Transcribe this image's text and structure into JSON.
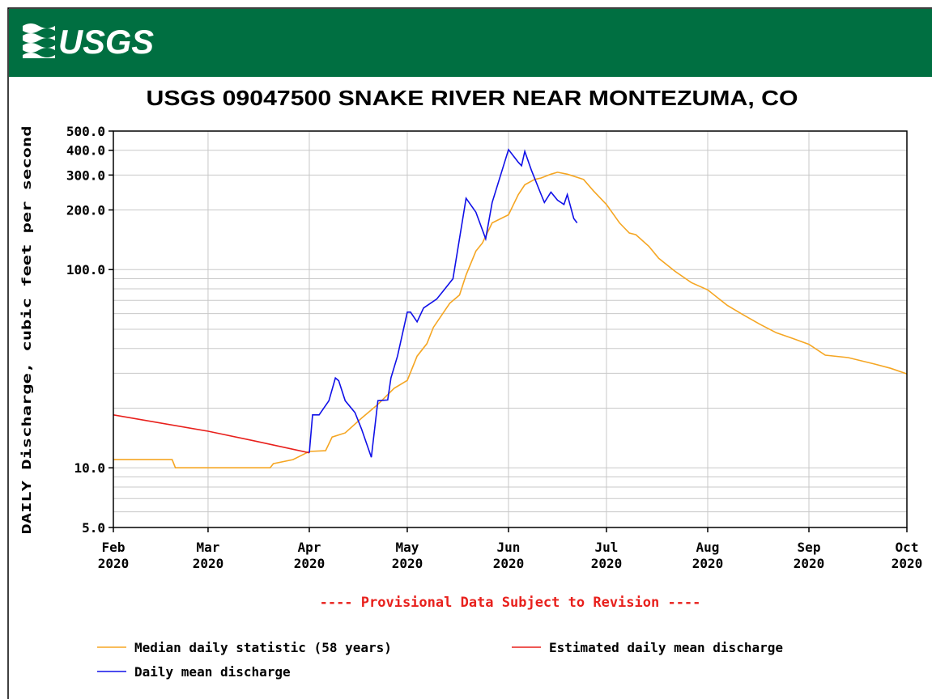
{
  "header": {
    "logo": "USGS"
  },
  "chart_data": {
    "type": "line",
    "title": "USGS 09047500 SNAKE RIVER NEAR MONTEZUMA, CO",
    "ylabel": "DAILY Discharge, cubic feet per second",
    "note": "---- Provisional Data Subject to Revision ----",
    "log_y": true,
    "grid": true,
    "ylim": [
      5,
      500
    ],
    "yticks": [
      {
        "value": 5,
        "label": "5.0"
      },
      {
        "value": 10,
        "label": "10.0"
      },
      {
        "value": 100,
        "label": "100.0"
      },
      {
        "value": 200,
        "label": "200.0"
      },
      {
        "value": 300,
        "label": "300.0"
      },
      {
        "value": 400,
        "label": "400.0"
      },
      {
        "value": 500,
        "label": "500.0"
      }
    ],
    "yticks_minor": [
      6,
      7,
      8,
      9,
      20,
      30,
      40,
      50,
      60,
      70,
      80,
      90
    ],
    "xlim": [
      "2020-02",
      "2020-10"
    ],
    "xticks": [
      {
        "value": "2020-02",
        "label": "Feb 2020"
      },
      {
        "value": "2020-03",
        "label": "Mar 2020"
      },
      {
        "value": "2020-04",
        "label": "Apr 2020"
      },
      {
        "value": "2020-05",
        "label": "May 2020"
      },
      {
        "value": "2020-06",
        "label": "Jun 2020"
      },
      {
        "value": "2020-07",
        "label": "Jul 2020"
      },
      {
        "value": "2020-08",
        "label": "Aug 2020"
      },
      {
        "value": "2020-09",
        "label": "Sep 2020"
      },
      {
        "value": "2020-10",
        "label": "Oct 2020"
      }
    ],
    "series": [
      {
        "name": "Median daily statistic (58 years)",
        "color": "#f5a623",
        "x": [
          "2020-02-01",
          "2020-02-19",
          "2020-02-20",
          "2020-03-20",
          "2020-03-21",
          "2020-03-27",
          "2020-04-01",
          "2020-04-06",
          "2020-04-08",
          "2020-04-12",
          "2020-04-17",
          "2020-04-22",
          "2020-04-27",
          "2020-05-01",
          "2020-05-04",
          "2020-05-07",
          "2020-05-09",
          "2020-05-14",
          "2020-05-17",
          "2020-05-19",
          "2020-05-22",
          "2020-05-24",
          "2020-05-27",
          "2020-06-01",
          "2020-06-04",
          "2020-06-06",
          "2020-06-09",
          "2020-06-11",
          "2020-06-14",
          "2020-06-16",
          "2020-06-19",
          "2020-06-21",
          "2020-06-24",
          "2020-06-27",
          "2020-07-01",
          "2020-07-05",
          "2020-07-08",
          "2020-07-10",
          "2020-07-14",
          "2020-07-17",
          "2020-07-22",
          "2020-07-27",
          "2020-08-01",
          "2020-08-07",
          "2020-08-12",
          "2020-08-17",
          "2020-08-22",
          "2020-08-27",
          "2020-09-01",
          "2020-09-06",
          "2020-09-13",
          "2020-09-21",
          "2020-09-26",
          "2020-10-01"
        ],
        "values": [
          11,
          11,
          10,
          10,
          10.5,
          11,
          12.1,
          12.2,
          14.3,
          15,
          17.8,
          20.9,
          25.2,
          27.6,
          36.6,
          42.3,
          51.1,
          67.6,
          74.5,
          94,
          124,
          136,
          172,
          189,
          239,
          268,
          285,
          290,
          303,
          310,
          303,
          296,
          285,
          250,
          213,
          172,
          153,
          150,
          131,
          114,
          98,
          86,
          79,
          66,
          59,
          53,
          48,
          45,
          42,
          37,
          36,
          33.4,
          31.8,
          29.8
        ]
      },
      {
        "name": "Estimated daily mean discharge",
        "color": "#e8201c",
        "x": [
          "2020-02-01",
          "2020-03-01",
          "2020-03-15",
          "2020-04-01"
        ],
        "values": [
          18.5,
          15.3,
          13.7,
          11.9
        ]
      },
      {
        "name": "Daily mean discharge",
        "color": "#1010e8",
        "x": [
          "2020-04-01",
          "2020-04-02",
          "2020-04-04",
          "2020-04-07",
          "2020-04-09",
          "2020-04-10",
          "2020-04-12",
          "2020-04-15",
          "2020-04-17",
          "2020-04-20",
          "2020-04-22",
          "2020-04-25",
          "2020-04-26",
          "2020-04-28",
          "2020-05-01",
          "2020-05-02",
          "2020-05-04",
          "2020-05-06",
          "2020-05-10",
          "2020-05-12",
          "2020-05-15",
          "2020-05-19",
          "2020-05-22",
          "2020-05-25",
          "2020-05-27",
          "2020-06-01",
          "2020-06-04",
          "2020-06-05",
          "2020-06-06",
          "2020-06-08",
          "2020-06-11",
          "2020-06-12",
          "2020-06-14",
          "2020-06-16",
          "2020-06-18",
          "2020-06-19",
          "2020-06-21",
          "2020-06-22"
        ],
        "values": [
          11.9,
          18.5,
          18.5,
          21.8,
          28.4,
          27.5,
          21.8,
          19,
          15.7,
          11.3,
          21.8,
          22,
          28.4,
          36.6,
          61,
          61,
          54.5,
          64,
          71,
          78,
          90,
          229,
          195,
          143,
          218,
          403,
          348,
          334,
          395,
          318,
          239,
          218,
          246,
          224,
          213,
          239,
          181,
          172
        ]
      }
    ]
  }
}
